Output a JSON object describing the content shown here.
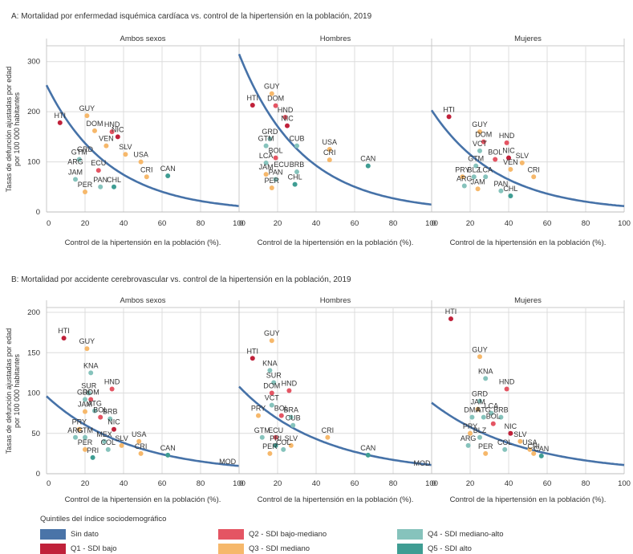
{
  "colors": {
    "nodata": "#4a74a8",
    "q1": "#c0213a",
    "q2": "#e45563",
    "q3": "#f6b86b",
    "q4": "#86c3bc",
    "q5": "#3f9d93",
    "curve": "#4672a8",
    "grid": "#dcdcdc"
  },
  "legend": {
    "title": "Quintiles del índice sociodemográfico",
    "items": [
      {
        "label": "Sin dato",
        "color_key": "nodata"
      },
      {
        "label": "Q2 - SDI bajo-mediano",
        "color_key": "q2"
      },
      {
        "label": "Q4 - SDI mediano-alto",
        "color_key": "q4"
      },
      {
        "label": "Q1 - SDI bajo",
        "color_key": "q1"
      },
      {
        "label": "Q3 - SDI mediano",
        "color_key": "q3"
      },
      {
        "label": "Q5 - SDI alto",
        "color_key": "q5"
      }
    ]
  },
  "chart_data": [
    {
      "type": "scatter",
      "title": "A: Mortalidad por enfermedad isquémica cardíaca vs. control de la hipertensión en la población, 2019",
      "ylabel": "Tasas de defunción ajustadas por edad por 100 000 habitantes",
      "ylabel_lines": [
        "Tasas de defunción ajustadas por edad",
        "por 100 000 habitantes"
      ],
      "ylim": [
        0,
        330
      ],
      "yticks": [
        0,
        100,
        200,
        300
      ],
      "xlim": [
        0,
        100
      ],
      "xticks": [
        0,
        20,
        40,
        60,
        80,
        100
      ],
      "facets": [
        {
          "title": "Ambos sexos",
          "xlabel": "Control de la hipertensión en la población (%).",
          "curve": {
            "a": 253,
            "b": 0.0306
          },
          "points": [
            {
              "label": "HTI",
              "x": 7,
              "y": 178,
              "q": "q1"
            },
            {
              "label": "GUY",
              "x": 21,
              "y": 192,
              "q": "q3"
            },
            {
              "label": "DOM",
              "x": 25,
              "y": 162,
              "q": "q3"
            },
            {
              "label": "HND",
              "x": 34,
              "y": 160,
              "q": "q2"
            },
            {
              "label": "NIC",
              "x": 37,
              "y": 150,
              "q": "q1"
            },
            {
              "label": "VEN",
              "x": 31,
              "y": 132,
              "q": "q3"
            },
            {
              "label": "SLV",
              "x": 41,
              "y": 115,
              "q": "q3"
            },
            {
              "label": "USA",
              "x": 49,
              "y": 100,
              "q": "q3"
            },
            {
              "label": "GTM",
              "x": 17,
              "y": 105,
              "q": "q4"
            },
            {
              "label": "ECU",
              "x": 27,
              "y": 83,
              "q": "q2"
            },
            {
              "label": "JAM",
              "x": 15,
              "y": 65,
              "q": "q4"
            },
            {
              "label": "CRI",
              "x": 52,
              "y": 70,
              "q": "q3"
            },
            {
              "label": "CAN",
              "x": 63,
              "y": 72,
              "q": "q5"
            },
            {
              "label": "PAN",
              "x": 28,
              "y": 50,
              "q": "q4"
            },
            {
              "label": "CHL",
              "x": 35,
              "y": 50,
              "q": "q5"
            },
            {
              "label": "PER",
              "x": 20,
              "y": 40,
              "q": "q3"
            }
          ],
          "annotations": [
            {
              "label": "GRD",
              "x": 20,
              "y": 120
            },
            {
              "label": "ARG",
              "x": 15,
              "y": 95
            }
          ]
        },
        {
          "title": "Hombres",
          "xlabel": "Control de la hipertensión en la población (%).",
          "curve": {
            "a": 315,
            "b": 0.0306
          },
          "points": [
            {
              "label": "GUY",
              "x": 17,
              "y": 236,
              "q": "q3"
            },
            {
              "label": "HTI",
              "x": 7,
              "y": 213,
              "q": "q1"
            },
            {
              "label": "DOM",
              "x": 19,
              "y": 212,
              "q": "q2"
            },
            {
              "label": "HND",
              "x": 24,
              "y": 189,
              "q": "q2"
            },
            {
              "label": "NIC",
              "x": 25,
              "y": 172,
              "q": "q1"
            },
            {
              "label": "GRD",
              "x": 16,
              "y": 146,
              "q": "q4"
            },
            {
              "label": "GTM",
              "x": 14,
              "y": 132,
              "q": "q4"
            },
            {
              "label": "CUB",
              "x": 30,
              "y": 132,
              "q": "q4"
            },
            {
              "label": "USA",
              "x": 47,
              "y": 125,
              "q": "q3"
            },
            {
              "label": "CRI",
              "x": 47,
              "y": 104,
              "q": "q3"
            },
            {
              "label": "LCA",
              "x": 14,
              "y": 98,
              "q": "q4"
            },
            {
              "label": "BOL",
              "x": 19,
              "y": 108,
              "q": "q2"
            },
            {
              "label": "CAN",
              "x": 67,
              "y": 92,
              "q": "q5"
            },
            {
              "label": "JAM",
              "x": 14,
              "y": 75,
              "q": "q3"
            },
            {
              "label": "BRB",
              "x": 30,
              "y": 80,
              "q": "q4"
            },
            {
              "label": "PAN",
              "x": 19,
              "y": 65,
              "q": "q4"
            },
            {
              "label": "CHL",
              "x": 29,
              "y": 55,
              "q": "q5"
            },
            {
              "label": "PER",
              "x": 17,
              "y": 48,
              "q": "q3"
            }
          ],
          "annotations": [
            {
              "label": "ECU",
              "x": 22,
              "y": 90
            }
          ]
        },
        {
          "title": "Mujeres",
          "xlabel": "Control de la hipertensión en la población (%).",
          "curve": {
            "a": 203,
            "b": 0.0286
          },
          "points": [
            {
              "label": "HTI",
              "x": 9,
              "y": 190,
              "q": "q1"
            },
            {
              "label": "GUY",
              "x": 25,
              "y": 160,
              "q": "q3"
            },
            {
              "label": "HND",
              "x": 39,
              "y": 138,
              "q": "q2"
            },
            {
              "label": "DOM",
              "x": 27,
              "y": 140,
              "q": "q2"
            },
            {
              "label": "VCT",
              "x": 25,
              "y": 122,
              "q": "q4"
            },
            {
              "label": "BOL",
              "x": 33,
              "y": 105,
              "q": "q2"
            },
            {
              "label": "NIC",
              "x": 40,
              "y": 108,
              "q": "q1"
            },
            {
              "label": "SLV",
              "x": 47,
              "y": 98,
              "q": "q3"
            },
            {
              "label": "GTM",
              "x": 23,
              "y": 92,
              "q": "q4"
            },
            {
              "label": "VEN",
              "x": 41,
              "y": 85,
              "q": "q3"
            },
            {
              "label": "PRY",
              "x": 16,
              "y": 70,
              "q": "q3"
            },
            {
              "label": "BLZ",
              "x": 22,
              "y": 70,
              "q": "q4"
            },
            {
              "label": "LCA",
              "x": 28,
              "y": 70,
              "q": "q4"
            },
            {
              "label": "CRI",
              "x": 53,
              "y": 70,
              "q": "q3"
            },
            {
              "label": "ARG",
              "x": 17,
              "y": 52,
              "q": "q4"
            },
            {
              "label": "JAM",
              "x": 24,
              "y": 46,
              "q": "q3"
            },
            {
              "label": "PAN",
              "x": 36,
              "y": 42,
              "q": "q4"
            },
            {
              "label": "CHL",
              "x": 41,
              "y": 32,
              "q": "q5"
            }
          ],
          "annotations": []
        }
      ]
    },
    {
      "type": "scatter",
      "title": "B: Mortalidad por accidente cerebrovascular vs. control de la hipertensión en la población, 2019",
      "ylabel": "Tasas de defunción ajustadas por edad por 100 000 habitantes",
      "ylabel_lines": [
        "Tasas de defunción ajustadas por edad",
        "por 100 000 habitantes"
      ],
      "ylim": [
        0,
        205
      ],
      "yticks": [
        0,
        50,
        100,
        150,
        200
      ],
      "xlim": [
        0,
        100
      ],
      "xticks": [
        0,
        20,
        40,
        60,
        80,
        100
      ],
      "facets": [
        {
          "title": "Ambos sexos",
          "xlabel": "Control de la hipertensión en la población (%).",
          "curve": {
            "a": 96,
            "b": 0.023
          },
          "points": [
            {
              "label": "HTI",
              "x": 9,
              "y": 168,
              "q": "q1"
            },
            {
              "label": "GUY",
              "x": 21,
              "y": 155,
              "q": "q3"
            },
            {
              "label": "KNA",
              "x": 23,
              "y": 125,
              "q": "q4"
            },
            {
              "label": "HND",
              "x": 34,
              "y": 105,
              "q": "q2"
            },
            {
              "label": "SUR",
              "x": 22,
              "y": 100,
              "q": "q4"
            },
            {
              "label": "GRD",
              "x": 20,
              "y": 92,
              "q": "q4"
            },
            {
              "label": "DOM",
              "x": 23,
              "y": 92,
              "q": "q2"
            },
            {
              "label": "JAM",
              "x": 20,
              "y": 77,
              "q": "q3"
            },
            {
              "label": "ATG",
              "x": 25,
              "y": 78,
              "q": "q4"
            },
            {
              "label": "BOL",
              "x": 28,
              "y": 70,
              "q": "q2"
            },
            {
              "label": "BRB",
              "x": 33,
              "y": 68,
              "q": "q4"
            },
            {
              "label": "NIC",
              "x": 35,
              "y": 55,
              "q": "q1"
            },
            {
              "label": "PRY",
              "x": 17,
              "y": 55,
              "q": "q3"
            },
            {
              "label": "ARG",
              "x": 15,
              "y": 45,
              "q": "q4"
            },
            {
              "label": "GTM",
              "x": 20,
              "y": 45,
              "q": "q4"
            },
            {
              "label": "MEX",
              "x": 30,
              "y": 40,
              "q": "q4"
            },
            {
              "label": "PER",
              "x": 20,
              "y": 30,
              "q": "q3"
            },
            {
              "label": "COL",
              "x": 32,
              "y": 30,
              "q": "q4"
            },
            {
              "label": "SLV",
              "x": 39,
              "y": 35,
              "q": "q3"
            },
            {
              "label": "USA",
              "x": 48,
              "y": 40,
              "q": "q3"
            },
            {
              "label": "CRI",
              "x": 49,
              "y": 25,
              "q": "q3"
            },
            {
              "label": "CAN",
              "x": 63,
              "y": 23,
              "q": "q5"
            },
            {
              "label": "PRI",
              "x": 24,
              "y": 20,
              "q": "q5"
            }
          ],
          "annotations": [
            {
              "label": "MOD",
              "x": 94,
              "y": 12
            }
          ]
        },
        {
          "title": "Hombres",
          "xlabel": "Control de la hipertensión en la población (%).",
          "curve": {
            "a": 108,
            "b": 0.023
          },
          "points": [
            {
              "label": "GUY",
              "x": 17,
              "y": 165,
              "q": "q3"
            },
            {
              "label": "HTI",
              "x": 7,
              "y": 143,
              "q": "q1"
            },
            {
              "label": "KNA",
              "x": 16,
              "y": 128,
              "q": "q4"
            },
            {
              "label": "SUR",
              "x": 18,
              "y": 113,
              "q": "q4"
            },
            {
              "label": "HND",
              "x": 26,
              "y": 103,
              "q": "q2"
            },
            {
              "label": "DOM",
              "x": 17,
              "y": 100,
              "q": "q2"
            },
            {
              "label": "VCT",
              "x": 17,
              "y": 85,
              "q": "q4"
            },
            {
              "label": "BOL",
              "x": 22,
              "y": 72,
              "q": "q2"
            },
            {
              "label": "BRA",
              "x": 27,
              "y": 70,
              "q": "q4"
            },
            {
              "label": "PRY",
              "x": 10,
              "y": 72,
              "q": "q3"
            },
            {
              "label": "CUB",
              "x": 28,
              "y": 60,
              "q": "q4"
            },
            {
              "label": "GTM",
              "x": 12,
              "y": 45,
              "q": "q4"
            },
            {
              "label": "ECU",
              "x": 19,
              "y": 45,
              "q": "q2"
            },
            {
              "label": "PRI",
              "x": 19,
              "y": 35,
              "q": "q5"
            },
            {
              "label": "SLV",
              "x": 27,
              "y": 35,
              "q": "q3"
            },
            {
              "label": "CRI",
              "x": 46,
              "y": 45,
              "q": "q3"
            },
            {
              "label": "CAN",
              "x": 67,
              "y": 23,
              "q": "q5"
            },
            {
              "label": "PER",
              "x": 16,
              "y": 25,
              "q": "q3"
            },
            {
              "label": "COL",
              "x": 23,
              "y": 30,
              "q": "q4"
            }
          ],
          "annotations": [
            {
              "label": "MOD",
              "x": 95,
              "y": 10
            }
          ]
        },
        {
          "title": "Mujeres",
          "xlabel": "Control de la hipertensión en la población (%).",
          "curve": {
            "a": 88,
            "b": 0.021
          },
          "points": [
            {
              "label": "HTI",
              "x": 10,
              "y": 192,
              "q": "q1"
            },
            {
              "label": "GUY",
              "x": 25,
              "y": 145,
              "q": "q3"
            },
            {
              "label": "KNA",
              "x": 28,
              "y": 118,
              "q": "q4"
            },
            {
              "label": "HND",
              "x": 39,
              "y": 105,
              "q": "q2"
            },
            {
              "label": "GRD",
              "x": 25,
              "y": 90,
              "q": "q4"
            },
            {
              "label": "JAM",
              "x": 24,
              "y": 80,
              "q": "q3"
            },
            {
              "label": "LCA",
              "x": 31,
              "y": 75,
              "q": "q4"
            },
            {
              "label": "DMA",
              "x": 21,
              "y": 70,
              "q": "q4"
            },
            {
              "label": "ATG",
              "x": 27,
              "y": 70,
              "q": "q4"
            },
            {
              "label": "BRB",
              "x": 36,
              "y": 70,
              "q": "q4"
            },
            {
              "label": "BOL",
              "x": 32,
              "y": 62,
              "q": "q2"
            },
            {
              "label": "NIC",
              "x": 41,
              "y": 50,
              "q": "q1"
            },
            {
              "label": "PRY",
              "x": 20,
              "y": 50,
              "q": "q3"
            },
            {
              "label": "BLZ",
              "x": 25,
              "y": 45,
              "q": "q4"
            },
            {
              "label": "SLV",
              "x": 46,
              "y": 40,
              "q": "q3"
            },
            {
              "label": "ARG",
              "x": 19,
              "y": 35,
              "q": "q4"
            },
            {
              "label": "COL",
              "x": 38,
              "y": 30,
              "q": "q4"
            },
            {
              "label": "USA",
              "x": 51,
              "y": 30,
              "q": "q3"
            },
            {
              "label": "PER",
              "x": 28,
              "y": 25,
              "q": "q3"
            },
            {
              "label": "CRI",
              "x": 53,
              "y": 25,
              "q": "q3"
            },
            {
              "label": "CAN",
              "x": 57,
              "y": 22,
              "q": "q5"
            }
          ],
          "annotations": []
        }
      ]
    }
  ]
}
